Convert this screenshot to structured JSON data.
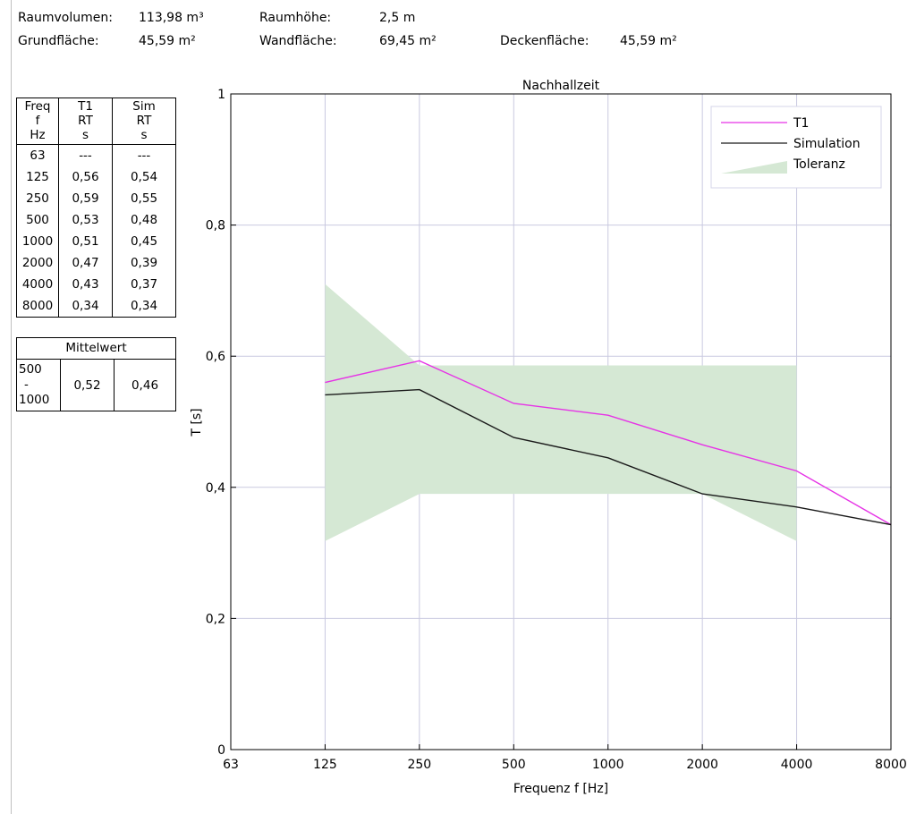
{
  "room": {
    "volume_label": "Raumvolumen:",
    "volume_value": "113,98 m³",
    "height_label": "Raumhöhe:",
    "height_value": "2,5 m",
    "floor_label": "Grundfläche:",
    "floor_value": "45,59 m²",
    "wall_label": "Wandfläche:",
    "wall_value": "69,45 m²",
    "ceiling_label": "Deckenfläche:",
    "ceiling_value": "45,59 m²"
  },
  "table": {
    "headers": [
      [
        "Freq",
        "f",
        "Hz"
      ],
      [
        "T1",
        "RT",
        "s"
      ],
      [
        "Sim",
        "RT",
        "s"
      ]
    ],
    "rows": [
      [
        "63",
        "---",
        "---"
      ],
      [
        "125",
        "0,56",
        "0,54"
      ],
      [
        "250",
        "0,59",
        "0,55"
      ],
      [
        "500",
        "0,53",
        "0,48"
      ],
      [
        "1000",
        "0,51",
        "0,45"
      ],
      [
        "2000",
        "0,47",
        "0,39"
      ],
      [
        "4000",
        "0,43",
        "0,37"
      ],
      [
        "8000",
        "0,34",
        "0,34"
      ]
    ]
  },
  "mean": {
    "title": "Mittelwert",
    "range": [
      "500",
      "-",
      "1000"
    ],
    "t1": "0,52",
    "sim": "0,46"
  },
  "chart_data": {
    "type": "line",
    "title": "Nachhallzeit",
    "xlabel": "Frequenz f [Hz]",
    "ylabel": "T [s]",
    "categories": [
      "63",
      "125",
      "250",
      "500",
      "1000",
      "2000",
      "4000",
      "8000"
    ],
    "yticks": [
      "0",
      "0,2",
      "0,4",
      "0,6",
      "0,8",
      "1"
    ],
    "ylim": [
      0,
      1
    ],
    "grid": true,
    "legend_position": "top-right",
    "series": [
      {
        "name": "T1",
        "color": "#e633e6",
        "values": [
          null,
          0.56,
          0.593,
          0.528,
          0.51,
          0.465,
          0.425,
          0.343
        ]
      },
      {
        "name": "Simulation",
        "color": "#1a1a1a",
        "values": [
          null,
          0.541,
          0.549,
          0.476,
          0.445,
          0.39,
          0.37,
          0.343
        ]
      }
    ],
    "tolerance": {
      "name": "Toleranz",
      "color": "#d5e8d4",
      "upper": [
        null,
        0.71,
        0.586,
        0.586,
        0.586,
        0.586,
        0.586,
        null
      ],
      "lower": [
        null,
        0.318,
        0.39,
        0.39,
        0.39,
        0.39,
        0.318,
        null
      ]
    }
  }
}
